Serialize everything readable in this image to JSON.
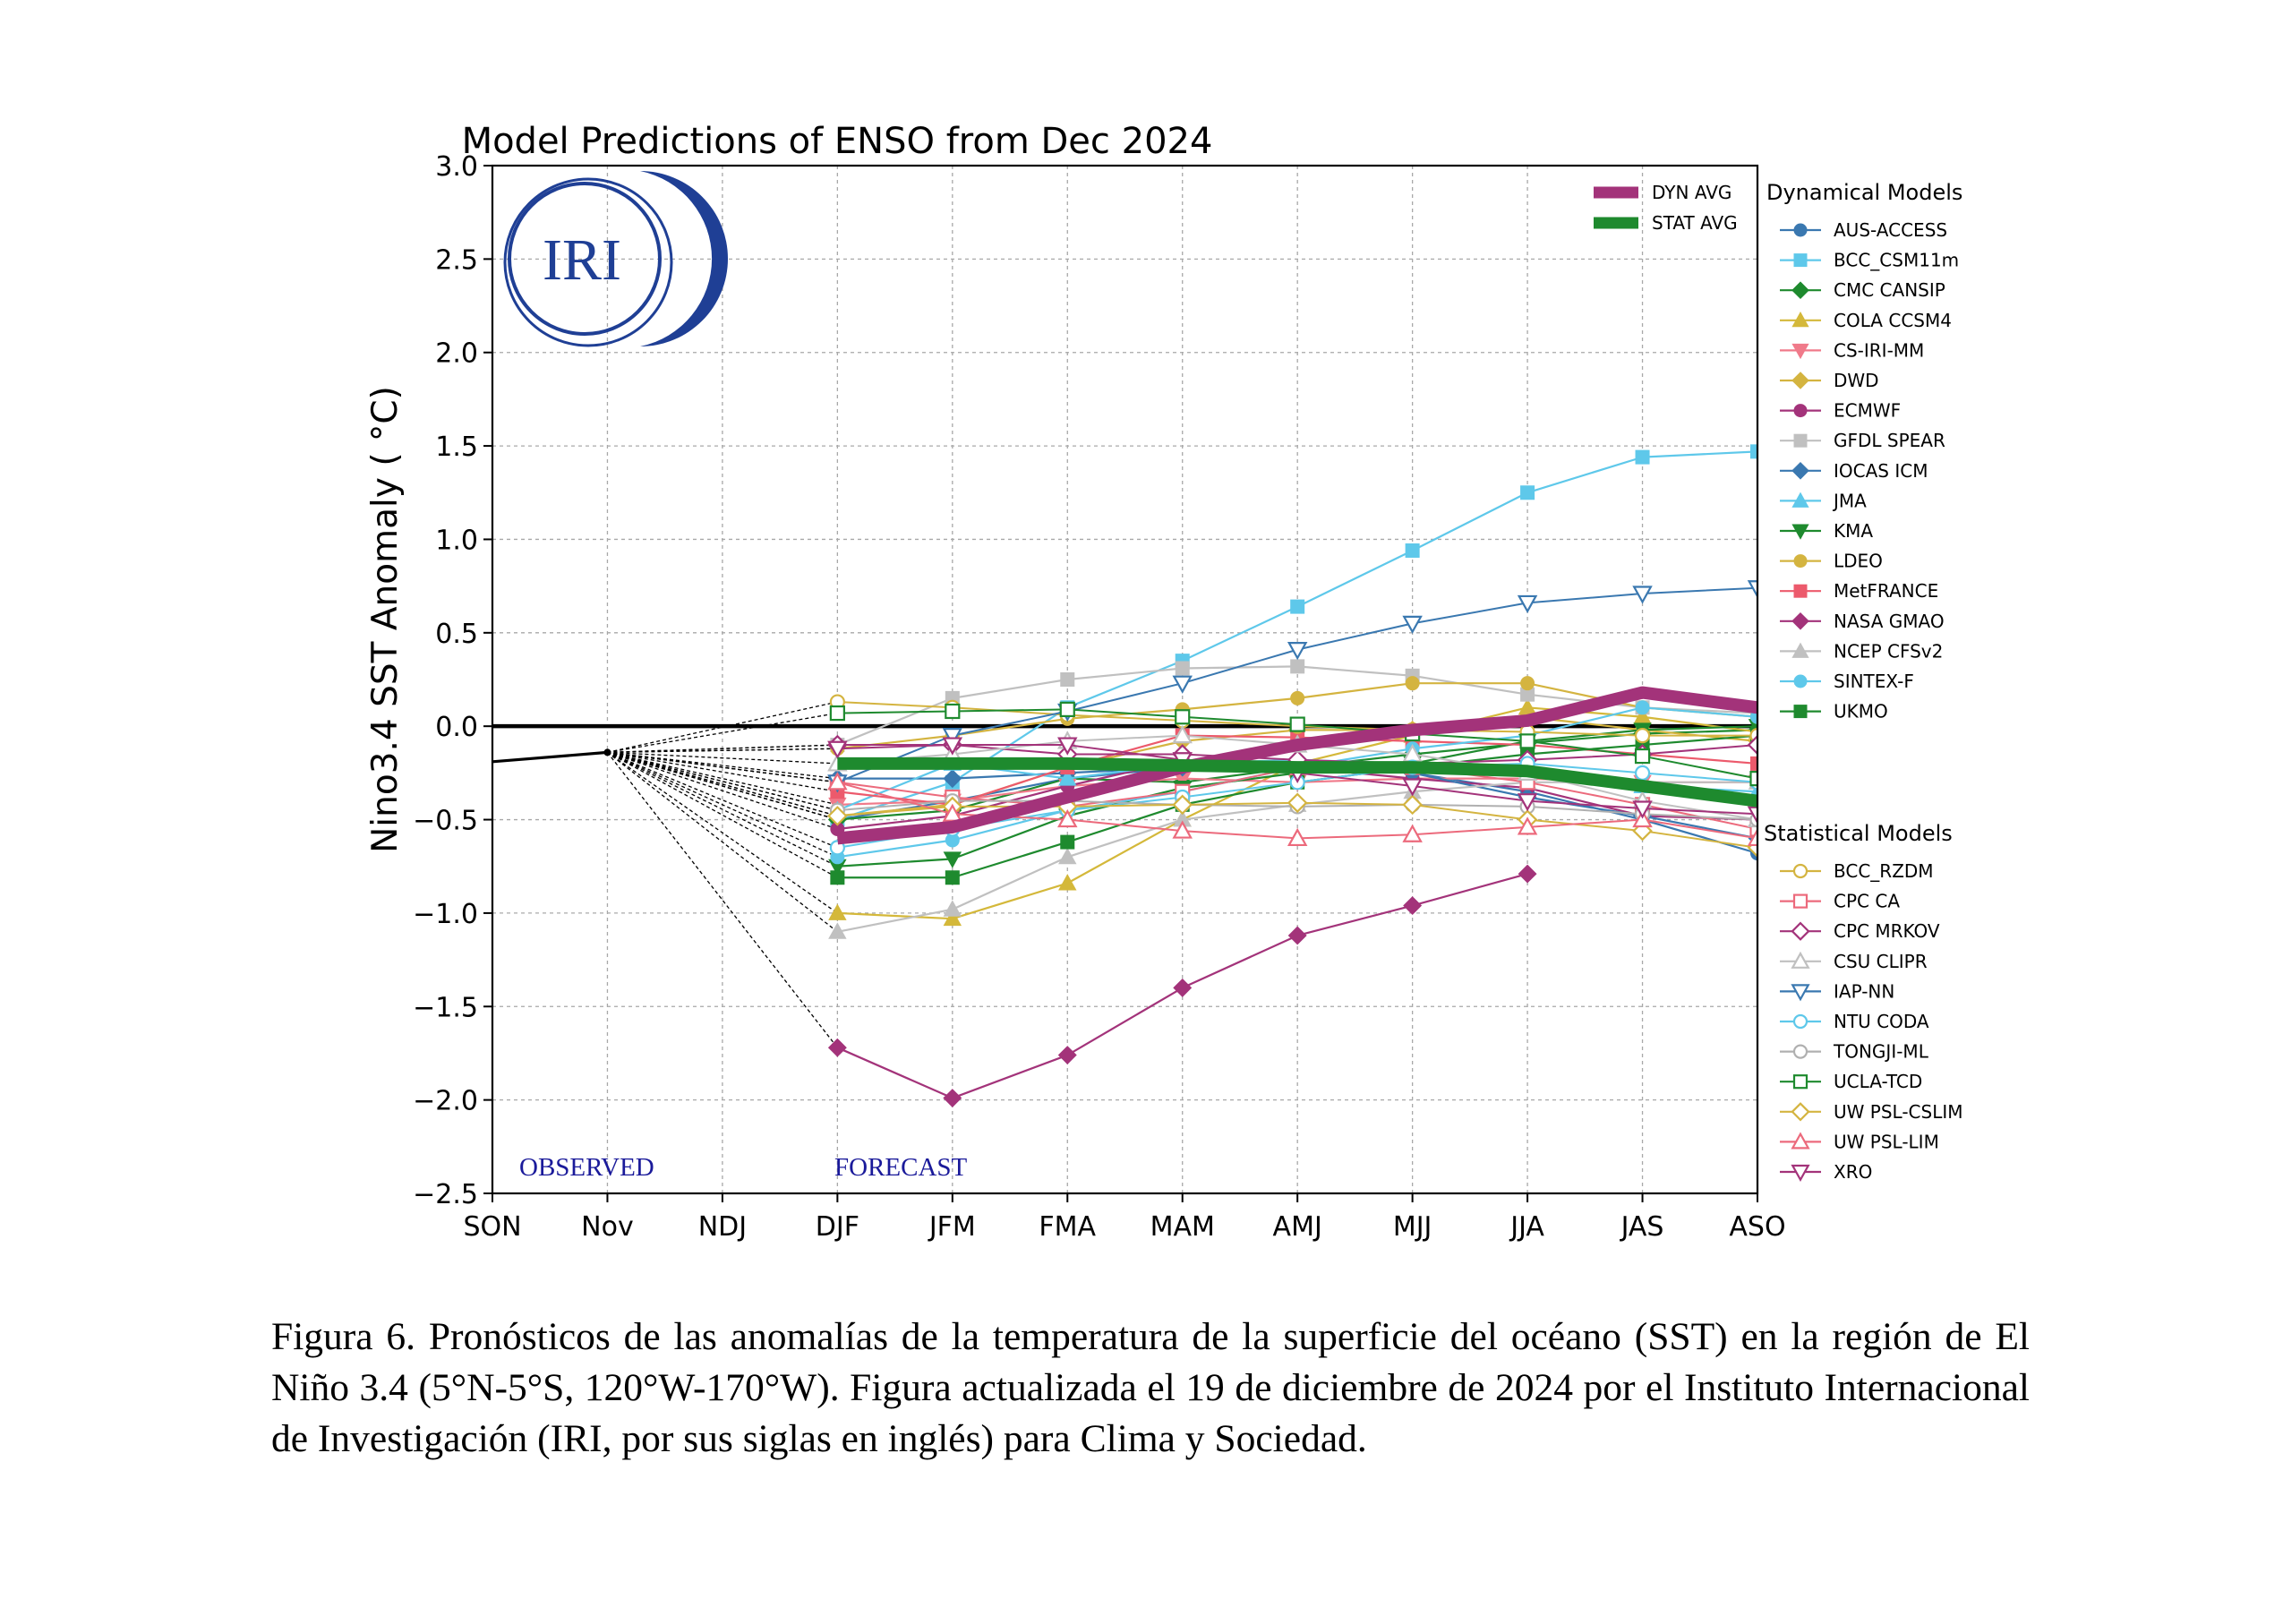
{
  "chart_data": {
    "type": "line",
    "title": "Model Predictions of ENSO from Dec 2024",
    "ylabel": "Nino3.4 SST Anomaly ( °C)",
    "xlabel": "",
    "categories": [
      "SON",
      "Nov",
      "NDJ",
      "DJF",
      "JFM",
      "FMA",
      "MAM",
      "AMJ",
      "MJJ",
      "JJA",
      "JAS",
      "ASO"
    ],
    "ylim": [
      -2.5,
      3.0
    ],
    "yticks": [
      "3.0",
      "2.5",
      "2.0",
      "1.5",
      "1.0",
      "0.5",
      "0.0",
      "−0.5",
      "−1.0",
      "−1.5",
      "−2.0",
      "−2.5"
    ],
    "grid": true,
    "logo_text": "IRI",
    "observed_label": "OBSERVED",
    "forecast_label": "FORECAST",
    "observed": {
      "x": [
        "SON",
        "Nov"
      ],
      "values": [
        -0.19,
        -0.14
      ]
    },
    "averages": [
      {
        "name": "DYN AVG",
        "color": "#a3337a",
        "values": [
          null,
          null,
          null,
          -0.6,
          -0.54,
          -0.38,
          -0.22,
          -0.1,
          -0.02,
          0.03,
          0.18,
          0.1
        ]
      },
      {
        "name": "STAT AVG",
        "color": "#1e8a2e",
        "values": [
          null,
          null,
          null,
          -0.2,
          -0.2,
          -0.2,
          -0.21,
          -0.22,
          -0.22,
          -0.24,
          -0.32,
          -0.4
        ]
      }
    ],
    "legend_dynamical_title": "Dynamical Models",
    "legend_statistical_title": "Statistical Models",
    "dynamical": [
      {
        "name": "AUS-ACCESS",
        "color": "#3a78b0",
        "marker": "circle",
        "values": [
          null,
          null,
          null,
          -0.5,
          -0.4,
          -0.28,
          -0.22,
          -0.2,
          -0.25,
          -0.35,
          -0.5,
          -0.68
        ]
      },
      {
        "name": "BCC_CSM11m",
        "color": "#5ec8ea",
        "marker": "square",
        "values": [
          null,
          null,
          null,
          -0.5,
          -0.3,
          0.1,
          0.35,
          0.64,
          0.94,
          1.25,
          1.44,
          1.47
        ]
      },
      {
        "name": "CMC CANSIP",
        "color": "#1e8a2e",
        "marker": "diamond",
        "values": [
          null,
          null,
          null,
          -0.5,
          -0.45,
          -0.28,
          -0.3,
          -0.22,
          -0.15,
          -0.09,
          -0.04,
          -0.02
        ]
      },
      {
        "name": "COLA CCSM4",
        "color": "#d4b83a",
        "marker": "triangle-up",
        "values": [
          null,
          null,
          null,
          -1.0,
          -1.03,
          -0.84,
          -0.5,
          -0.2,
          -0.05,
          0.1,
          0.05,
          -0.03
        ]
      },
      {
        "name": "CS-IRI-MM",
        "color": "#f07a8a",
        "marker": "triangle-down",
        "values": [
          null,
          null,
          null,
          -0.42,
          -0.4,
          -0.32,
          -0.28,
          -0.3,
          -0.28,
          -0.28,
          -0.3,
          -0.3
        ]
      },
      {
        "name": "DWD",
        "color": "#d4b440",
        "marker": "diamond",
        "values": [
          null,
          null,
          null,
          -0.48,
          -0.42,
          -0.22,
          -0.08,
          -0.02,
          -0.02,
          0.05,
          -0.02,
          -0.08
        ]
      },
      {
        "name": "ECMWF",
        "color": "#a3337a",
        "marker": "circle",
        "values": [
          null,
          null,
          null,
          -0.55,
          -0.48,
          -0.32,
          -0.18,
          -0.22,
          -0.28,
          -0.33,
          -0.48,
          -0.5
        ]
      },
      {
        "name": "GFDL SPEAR",
        "color": "#c0c0c0",
        "marker": "square",
        "values": [
          null,
          null,
          null,
          -0.1,
          0.15,
          0.25,
          0.31,
          0.32,
          0.27,
          0.17,
          0.1,
          0.07
        ]
      },
      {
        "name": "IOCAS ICM",
        "color": "#3a78b0",
        "marker": "diamond",
        "values": [
          null,
          null,
          null,
          -0.28,
          -0.28,
          -0.25,
          -0.22,
          -0.22,
          -0.25,
          -0.38,
          -0.48,
          -0.6
        ]
      },
      {
        "name": "JMA",
        "color": "#5ec8ea",
        "marker": "triangle-up",
        "values": [
          null,
          null,
          null,
          -0.45,
          -0.2,
          -0.28,
          -0.2,
          -0.18,
          -0.2,
          -0.25,
          -0.32,
          -0.35
        ]
      },
      {
        "name": "KMA",
        "color": "#1e8a2e",
        "marker": "triangle-down",
        "values": [
          null,
          null,
          null,
          -0.75,
          -0.71,
          -0.48,
          -0.33,
          -0.25,
          -0.2,
          -0.08,
          -0.02,
          0.0
        ]
      },
      {
        "name": "LDEO",
        "color": "#d4b440",
        "marker": "circle",
        "values": [
          null,
          null,
          null,
          -0.12,
          -0.05,
          0.04,
          0.09,
          0.15,
          0.23,
          0.23,
          0.1,
          0.05
        ]
      },
      {
        "name": "MetFRANCE",
        "color": "#ec5a6c",
        "marker": "square",
        "values": [
          null,
          null,
          null,
          -0.35,
          -0.42,
          -0.22,
          -0.05,
          -0.06,
          -0.08,
          -0.1,
          -0.15,
          -0.2
        ]
      },
      {
        "name": "NASA GMAO",
        "color": "#a3337a",
        "marker": "diamond",
        "values": [
          null,
          null,
          null,
          -1.72,
          -1.99,
          -1.76,
          -1.4,
          -1.12,
          -0.96,
          -0.79,
          null,
          null
        ]
      },
      {
        "name": "NCEP CFSv2",
        "color": "#c0c0c0",
        "marker": "triangle-up",
        "values": [
          null,
          null,
          null,
          -1.1,
          -0.98,
          -0.7,
          -0.5,
          -0.42,
          -0.35,
          -0.3,
          -0.3,
          -0.3
        ]
      },
      {
        "name": "SINTEX-F",
        "color": "#5ec8ea",
        "marker": "circle",
        "values": [
          null,
          null,
          null,
          -0.7,
          -0.61,
          -0.45,
          -0.35,
          -0.22,
          -0.12,
          -0.05,
          0.1,
          0.05
        ]
      },
      {
        "name": "UKMO",
        "color": "#1e8a2e",
        "marker": "square",
        "values": [
          null,
          null,
          null,
          -0.81,
          -0.81,
          -0.62,
          -0.42,
          -0.3,
          -0.22,
          -0.15,
          -0.1,
          -0.05
        ]
      }
    ],
    "statistical": [
      {
        "name": "BCC_RZDM",
        "color": "#d4b440",
        "marker": "circle-open",
        "values": [
          null,
          null,
          null,
          0.13,
          0.1,
          0.06,
          0.03,
          0.0,
          -0.02,
          -0.03,
          -0.05,
          -0.05
        ]
      },
      {
        "name": "CPC CA",
        "color": "#ec6a7c",
        "marker": "square-open",
        "values": [
          null,
          null,
          null,
          -0.3,
          -0.38,
          -0.43,
          -0.35,
          -0.22,
          -0.22,
          -0.3,
          -0.42,
          -0.55
        ]
      },
      {
        "name": "CPC MRKOV",
        "color": "#a3337a",
        "marker": "diamond-open",
        "values": [
          null,
          null,
          null,
          -0.1,
          -0.1,
          -0.15,
          -0.15,
          -0.18,
          -0.2,
          -0.18,
          -0.15,
          -0.1
        ]
      },
      {
        "name": "CSU CLIPR",
        "color": "#c0c0c0",
        "marker": "triangle-up-open",
        "values": [
          null,
          null,
          null,
          -0.2,
          -0.15,
          -0.08,
          -0.05,
          -0.1,
          -0.15,
          -0.25,
          -0.4,
          -0.5
        ]
      },
      {
        "name": "IAP-NN",
        "color": "#3a78b0",
        "marker": "triangle-down-open",
        "values": [
          null,
          null,
          null,
          -0.3,
          -0.05,
          0.08,
          0.23,
          0.41,
          0.55,
          0.66,
          0.71,
          0.74
        ]
      },
      {
        "name": "NTU CODA",
        "color": "#5ec8ea",
        "marker": "circle-open",
        "values": [
          null,
          null,
          null,
          -0.65,
          -0.55,
          -0.45,
          -0.38,
          -0.3,
          -0.22,
          -0.2,
          -0.25,
          -0.3
        ]
      },
      {
        "name": "TONGJI-ML",
        "color": "#b0b0b0",
        "marker": "circle-open",
        "values": [
          null,
          null,
          null,
          -0.45,
          -0.4,
          -0.4,
          -0.42,
          -0.43,
          -0.42,
          -0.43,
          -0.47,
          -0.5
        ]
      },
      {
        "name": "UCLA-TCD",
        "color": "#1e8a2e",
        "marker": "square-open",
        "values": [
          null,
          null,
          null,
          0.07,
          0.08,
          0.09,
          0.05,
          0.01,
          -0.04,
          -0.08,
          -0.16,
          -0.28
        ]
      },
      {
        "name": "UW PSL-CSLIM",
        "color": "#d4b440",
        "marker": "diamond-open",
        "values": [
          null,
          null,
          null,
          -0.48,
          -0.43,
          -0.43,
          -0.42,
          -0.41,
          -0.42,
          -0.5,
          -0.56,
          -0.65
        ]
      },
      {
        "name": "UW PSL-LIM",
        "color": "#ec6a7c",
        "marker": "triangle-up-open",
        "values": [
          null,
          null,
          null,
          -0.3,
          -0.47,
          -0.5,
          -0.56,
          -0.6,
          -0.58,
          -0.54,
          -0.5,
          -0.6
        ]
      },
      {
        "name": "XRO",
        "color": "#a3337a",
        "marker": "triangle-down-open",
        "values": [
          null,
          null,
          null,
          -0.12,
          -0.1,
          -0.1,
          -0.18,
          -0.25,
          -0.32,
          -0.4,
          -0.44,
          -0.47
        ]
      }
    ]
  },
  "caption": "Figura 6. Pronósticos de las anomalías de la temperatura de la superficie del océano (SST) en la región de El Niño 3.4 (5°N-5°S, 120°W-170°W). Figura actualizada el 19 de diciembre de 2024 por el Instituto Internacional de Investigación (IRI, por sus siglas en inglés) para Clima y Sociedad."
}
